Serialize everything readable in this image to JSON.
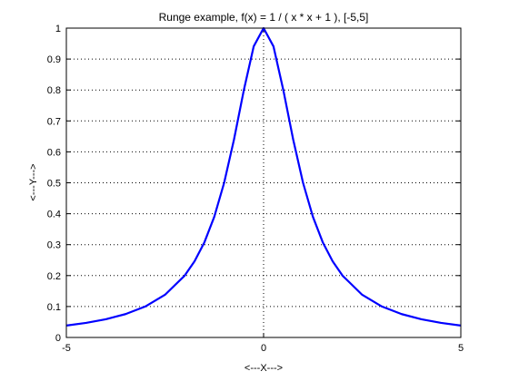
{
  "chart_data": {
    "type": "line",
    "title": "Runge example, f(x) = 1 / ( x * x + 1 ), [-5,5]",
    "xlabel": "<---X--->",
    "ylabel": "<---Y--->",
    "xlim": [
      -5,
      5
    ],
    "ylim": [
      0,
      1
    ],
    "xticks": [
      -5,
      0,
      5
    ],
    "xtick_labels": [
      "-5",
      "0",
      "5"
    ],
    "yticks": [
      0,
      0.1,
      0.2,
      0.3,
      0.4,
      0.5,
      0.6,
      0.7,
      0.8,
      0.9,
      1
    ],
    "ytick_labels": [
      "0",
      "0.1",
      "0.2",
      "0.3",
      "0.4",
      "0.5",
      "0.6",
      "0.7",
      "0.8",
      "0.9",
      "1"
    ],
    "grid": true,
    "legend": "none",
    "series": [
      {
        "color": "#0000ff",
        "x": [
          -5,
          -4.5,
          -4,
          -3.5,
          -3,
          -2.5,
          -2,
          -1.75,
          -1.5,
          -1.25,
          -1,
          -0.75,
          -0.5,
          -0.25,
          0,
          0.25,
          0.5,
          0.75,
          1,
          1.25,
          1.5,
          1.75,
          2,
          2.5,
          3,
          3.5,
          4,
          4.5,
          5
        ],
        "y": [
          0.0385,
          0.0471,
          0.0588,
          0.0755,
          0.1,
          0.1379,
          0.2,
          0.2462,
          0.3077,
          0.3902,
          0.5,
          0.64,
          0.8,
          0.9412,
          1,
          0.9412,
          0.8,
          0.64,
          0.5,
          0.3902,
          0.3077,
          0.2462,
          0.2,
          0.1379,
          0.1,
          0.0755,
          0.0588,
          0.0471,
          0.0385
        ]
      }
    ]
  }
}
